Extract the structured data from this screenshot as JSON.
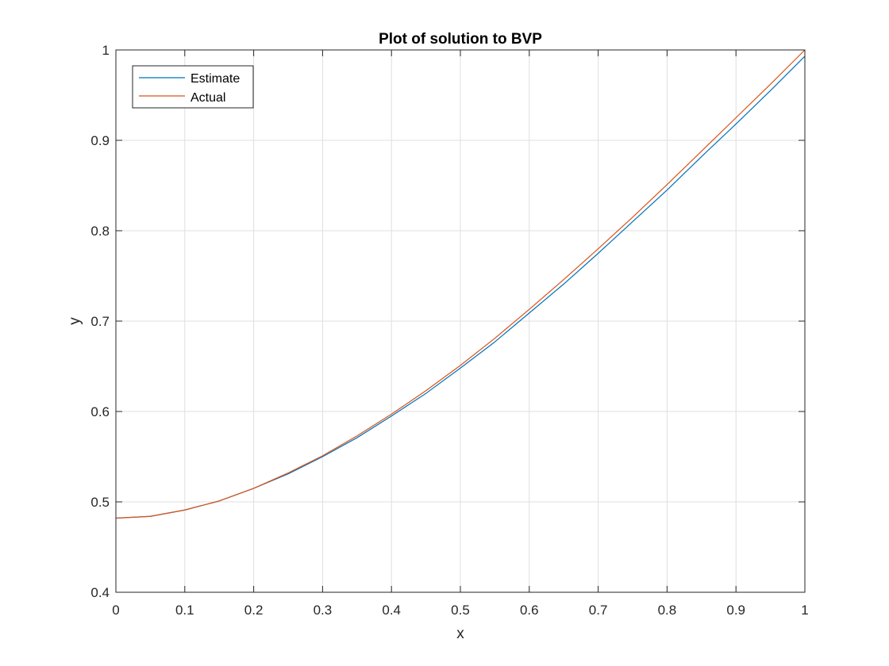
{
  "chart_data": {
    "type": "line",
    "title": "Plot of solution to BVP",
    "xlabel": "x",
    "ylabel": "y",
    "xlim": [
      0,
      1
    ],
    "ylim": [
      0.4,
      1
    ],
    "grid": true,
    "legend_position": "top-left",
    "x_ticks": [
      0,
      0.1,
      0.2,
      0.3,
      0.4,
      0.5,
      0.6,
      0.7,
      0.8,
      0.9,
      1
    ],
    "x_tick_labels": [
      "0",
      "0.1",
      "0.2",
      "0.3",
      "0.4",
      "0.5",
      "0.6",
      "0.7",
      "0.8",
      "0.9",
      "1"
    ],
    "y_ticks": [
      0.4,
      0.5,
      0.6,
      0.7,
      0.8,
      0.9,
      1
    ],
    "y_tick_labels": [
      "0.4",
      "0.5",
      "0.6",
      "0.7",
      "0.8",
      "0.9",
      "1"
    ],
    "x": [
      0,
      0.05,
      0.1,
      0.15,
      0.2,
      0.25,
      0.3,
      0.35,
      0.4,
      0.45,
      0.5,
      0.55,
      0.6,
      0.65,
      0.7,
      0.75,
      0.8,
      0.85,
      0.9,
      0.95,
      1
    ],
    "series": [
      {
        "name": "Estimate",
        "color": "#0072bd",
        "values": [
          0.482,
          0.484,
          0.491,
          0.501,
          0.515,
          0.531,
          0.55,
          0.571,
          0.595,
          0.62,
          0.648,
          0.677,
          0.709,
          0.741,
          0.775,
          0.81,
          0.845,
          0.882,
          0.918,
          0.955,
          0.993
        ]
      },
      {
        "name": "Actual",
        "color": "#d95319",
        "values": [
          0.482,
          0.484,
          0.491,
          0.501,
          0.515,
          0.532,
          0.551,
          0.573,
          0.597,
          0.623,
          0.651,
          0.681,
          0.713,
          0.746,
          0.78,
          0.815,
          0.851,
          0.888,
          0.925,
          0.962,
          1.0
        ]
      }
    ]
  }
}
